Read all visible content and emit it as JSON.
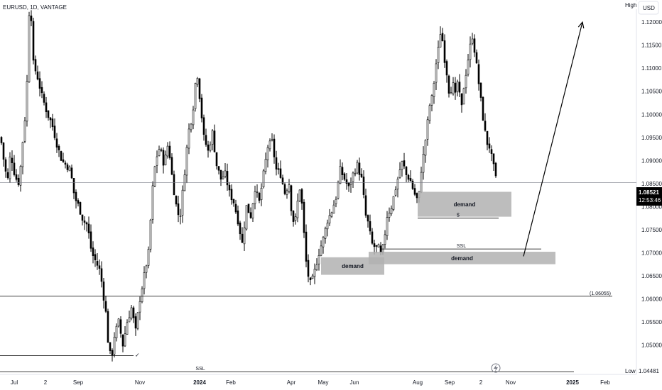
{
  "header": {
    "symbol_line": "EURUSD, 1D, VANTAGE"
  },
  "axis_labels": {
    "high_tag": "High",
    "low_tag": "Low",
    "currency": "USD",
    "low_value": "1.04481",
    "last_price": "1.08521",
    "countdown": "12:53:46",
    "level_label": "(1.06055)"
  },
  "colors": {
    "up": "#000000",
    "down": "#000000",
    "zone_fill": "#b2b2b2",
    "level_line": "#000000",
    "arrow": "#000000",
    "price_tag": "#000000",
    "background": "#ffffff"
  },
  "chart_data": {
    "type": "candlestick",
    "symbol": "EURUSD",
    "timeframe": "1D",
    "broker": "VANTAGE",
    "ylim": [
      1.0436,
      1.1248
    ],
    "y_ticks": [
      "1.12000",
      "1.11500",
      "1.11000",
      "1.10500",
      "1.10000",
      "1.09500",
      "1.09000",
      "1.08500",
      "1.08000",
      "1.07500",
      "1.07000",
      "1.06500",
      "1.06000",
      "1.05500",
      "1.05000"
    ],
    "x_tick_labels": [
      "Jul",
      "2",
      "Sep",
      "Nov",
      "2024",
      "Feb",
      "Apr",
      "May",
      "Jun",
      "Aug",
      "Sep",
      "2",
      "Nov",
      "2025",
      "Feb"
    ],
    "last_price": 1.08521,
    "keypoints": [
      [
        0,
        1.095
      ],
      [
        6,
        1.088
      ],
      [
        10,
        1.086
      ],
      [
        14,
        1.092
      ],
      [
        18,
        1.088
      ],
      [
        22,
        1.086
      ],
      [
        26,
        1.085
      ],
      [
        32,
        1.096
      ],
      [
        36,
        1.102
      ],
      [
        40,
        1.122
      ],
      [
        43,
        1.121
      ],
      [
        46,
        1.111
      ],
      [
        52,
        1.108
      ],
      [
        58,
        1.104
      ],
      [
        66,
        1.1
      ],
      [
        72,
        1.098
      ],
      [
        80,
        1.093
      ],
      [
        86,
        1.09
      ],
      [
        92,
        1.089
      ],
      [
        98,
        1.088
      ],
      [
        104,
        1.082
      ],
      [
        110,
        1.08
      ],
      [
        116,
        1.077
      ],
      [
        122,
        1.076
      ],
      [
        128,
        1.07
      ],
      [
        134,
        1.068
      ],
      [
        140,
        1.066
      ],
      [
        148,
        1.057
      ],
      [
        152,
        1.049
      ],
      [
        156,
        1.047
      ],
      [
        160,
        1.052
      ],
      [
        166,
        1.055
      ],
      [
        172,
        1.05
      ],
      [
        178,
        1.055
      ],
      [
        184,
        1.058
      ],
      [
        190,
        1.053
      ],
      [
        196,
        1.06
      ],
      [
        202,
        1.065
      ],
      [
        208,
        1.07
      ],
      [
        214,
        1.084
      ],
      [
        218,
        1.09
      ],
      [
        224,
        1.093
      ],
      [
        230,
        1.089
      ],
      [
        236,
        1.094
      ],
      [
        240,
        1.088
      ],
      [
        246,
        1.081
      ],
      [
        252,
        1.077
      ],
      [
        258,
        1.086
      ],
      [
        264,
        1.096
      ],
      [
        270,
        1.1
      ],
      [
        276,
        1.11
      ],
      [
        280,
        1.104
      ],
      [
        286,
        1.095
      ],
      [
        292,
        1.092
      ],
      [
        298,
        1.096
      ],
      [
        304,
        1.089
      ],
      [
        310,
        1.086
      ],
      [
        316,
        1.087
      ],
      [
        322,
        1.083
      ],
      [
        328,
        1.081
      ],
      [
        334,
        1.077
      ],
      [
        340,
        1.072
      ],
      [
        346,
        1.08
      ],
      [
        352,
        1.078
      ],
      [
        358,
        1.084
      ],
      [
        364,
        1.081
      ],
      [
        370,
        1.087
      ],
      [
        376,
        1.093
      ],
      [
        382,
        1.094
      ],
      [
        388,
        1.088
      ],
      [
        394,
        1.087
      ],
      [
        400,
        1.083
      ],
      [
        406,
        1.085
      ],
      [
        410,
        1.078
      ],
      [
        414,
        1.076
      ],
      [
        418,
        1.081
      ],
      [
        422,
        1.085
      ],
      [
        426,
        1.076
      ],
      [
        430,
        1.068
      ],
      [
        434,
        1.064
      ],
      [
        437,
        1.063
      ],
      [
        442,
        1.066
      ],
      [
        448,
        1.07
      ],
      [
        454,
        1.073
      ],
      [
        460,
        1.077
      ],
      [
        466,
        1.079
      ],
      [
        472,
        1.082
      ],
      [
        478,
        1.088
      ],
      [
        484,
        1.086
      ],
      [
        490,
        1.084
      ],
      [
        496,
        1.087
      ],
      [
        502,
        1.089
      ],
      [
        508,
        1.086
      ],
      [
        514,
        1.078
      ],
      [
        518,
        1.076
      ],
      [
        522,
        1.072
      ],
      [
        528,
        1.071
      ],
      [
        532,
        1.071
      ],
      [
        536,
        1.069
      ],
      [
        540,
        1.073
      ],
      [
        544,
        1.078
      ],
      [
        550,
        1.08
      ],
      [
        556,
        1.084
      ],
      [
        562,
        1.088
      ],
      [
        566,
        1.09
      ],
      [
        570,
        1.087
      ],
      [
        576,
        1.086
      ],
      [
        582,
        1.083
      ],
      [
        588,
        1.081
      ],
      [
        592,
        1.088
      ],
      [
        596,
        1.092
      ],
      [
        600,
        1.097
      ],
      [
        604,
        1.102
      ],
      [
        608,
        1.104
      ],
      [
        612,
        1.11
      ],
      [
        616,
        1.114
      ],
      [
        620,
        1.119
      ],
      [
        624,
        1.113
      ],
      [
        628,
        1.109
      ],
      [
        632,
        1.104
      ],
      [
        636,
        1.107
      ],
      [
        640,
        1.104
      ],
      [
        644,
        1.108
      ],
      [
        648,
        1.1
      ],
      [
        652,
        1.106
      ],
      [
        656,
        1.11
      ],
      [
        660,
        1.114
      ],
      [
        664,
        1.117
      ],
      [
        668,
        1.113
      ],
      [
        672,
        1.108
      ],
      [
        676,
        1.103
      ],
      [
        680,
        1.098
      ],
      [
        684,
        1.094
      ],
      [
        688,
        1.093
      ],
      [
        692,
        1.09
      ],
      [
        696,
        1.087
      ],
      [
        698,
        1.085
      ]
    ],
    "annotations": {
      "levels": [
        {
          "from_x": 0,
          "to_x": 862,
          "price": 1.06055,
          "label": "(1.06055)"
        },
        {
          "from_x": 0,
          "to_x": 188,
          "price": 1.0477,
          "label": ""
        },
        {
          "from_x": 0,
          "to_x": 808,
          "price": 1.0442,
          "label": "SSL"
        },
        {
          "from_x": 537,
          "to_x": 762,
          "price": 1.0708,
          "label": "SSL"
        },
        {
          "from_x": 588,
          "to_x": 702,
          "price": 1.0775,
          "label": "$"
        }
      ],
      "zones": [
        {
          "x1": 588,
          "x2": 720,
          "top": 1.0832,
          "bottom": 1.0778,
          "label": "demand"
        },
        {
          "x1": 452,
          "x2": 541,
          "top": 1.069,
          "bottom": 1.0652,
          "label": "demand"
        },
        {
          "x1": 519,
          "x2": 782,
          "top": 1.0702,
          "bottom": 1.0675,
          "label": "demand"
        }
      ],
      "arrow": {
        "from_x": 737,
        "from_price": 1.0692,
        "to_x": 820,
        "to_price": 1.12
      },
      "checkmark": {
        "x": 190,
        "price": 1.0478,
        "text": "✓"
      }
    }
  }
}
